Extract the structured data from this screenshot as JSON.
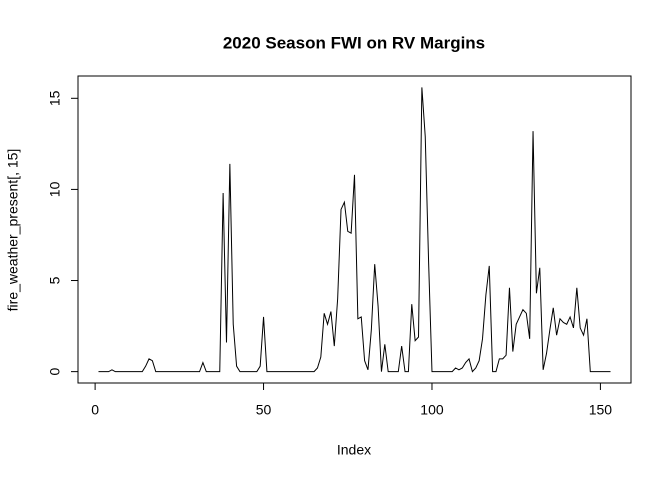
{
  "chart_data": {
    "type": "line",
    "title": "2020 Season FWI on RV Margins",
    "x_label": "Index",
    "y_label": "fire_weather_present[, 15]",
    "x": [
      1,
      2,
      3,
      4,
      5,
      6,
      7,
      8,
      9,
      10,
      11,
      12,
      13,
      14,
      15,
      16,
      17,
      18,
      19,
      20,
      21,
      22,
      23,
      24,
      25,
      26,
      27,
      28,
      29,
      30,
      31,
      32,
      33,
      34,
      35,
      36,
      37,
      38,
      39,
      40,
      41,
      42,
      43,
      44,
      45,
      46,
      47,
      48,
      49,
      50,
      51,
      52,
      53,
      54,
      55,
      56,
      57,
      58,
      59,
      60,
      61,
      62,
      63,
      64,
      65,
      66,
      67,
      68,
      69,
      70,
      71,
      72,
      73,
      74,
      75,
      76,
      77,
      78,
      79,
      80,
      81,
      82,
      83,
      84,
      85,
      86,
      87,
      88,
      89,
      90,
      91,
      92,
      93,
      94,
      95,
      96,
      97,
      98,
      99,
      100,
      101,
      102,
      103,
      104,
      105,
      106,
      107,
      108,
      109,
      110,
      111,
      112,
      113,
      114,
      115,
      116,
      117,
      118,
      119,
      120,
      121,
      122,
      123,
      124,
      125,
      126,
      127,
      128,
      129,
      130,
      131,
      132,
      133,
      134,
      135,
      136,
      137,
      138,
      139,
      140,
      141,
      142,
      143,
      144,
      145,
      146,
      147,
      148,
      149,
      150,
      151,
      152,
      153
    ],
    "series": [
      {
        "color": "#000000",
        "values": [
          0,
          0,
          0,
          0,
          0.1,
          0,
          0,
          0,
          0,
          0,
          0,
          0,
          0,
          0,
          0.3,
          0.7,
          0.6,
          0,
          0,
          0,
          0,
          0,
          0,
          0,
          0,
          0,
          0,
          0,
          0,
          0,
          0,
          0.5,
          0,
          0,
          0,
          0,
          0,
          9.8,
          1.6,
          11.4,
          2.6,
          0.3,
          0,
          0,
          0,
          0,
          0,
          0,
          0.3,
          3.0,
          0,
          0,
          0,
          0,
          0,
          0,
          0,
          0,
          0,
          0,
          0,
          0,
          0,
          0,
          0,
          0.2,
          0.8,
          3.2,
          2.6,
          3.3,
          1.4,
          4.0,
          8.9,
          9.3,
          7.7,
          7.6,
          10.8,
          2.9,
          3.0,
          0.6,
          0.1,
          2.3,
          5.9,
          3.6,
          0,
          1.5,
          0,
          0,
          0,
          0,
          1.4,
          0,
          0,
          3.7,
          1.7,
          1.9,
          15.6,
          12.9,
          6.0,
          0,
          0,
          0,
          0,
          0,
          0,
          0,
          0.2,
          0.1,
          0.2,
          0.5,
          0.7,
          0,
          0.2,
          0.6,
          1.8,
          4.2,
          5.8,
          0,
          0,
          0.7,
          0.7,
          0.9,
          4.6,
          1.1,
          2.6,
          3.0,
          3.4,
          3.2,
          1.8,
          13.2,
          4.3,
          5.7,
          0.1,
          1.0,
          2.3,
          3.5,
          2.0,
          2.9,
          2.7,
          2.6,
          3.0,
          2.4,
          4.6,
          2.4,
          2.0,
          2.9,
          0,
          0,
          0,
          0,
          0,
          0,
          0
        ]
      }
    ],
    "xlim": [
      -5.08,
      159.08
    ],
    "xticks": [
      0,
      50,
      100,
      150
    ],
    "ylim": [
      -0.624,
      16.224
    ],
    "yticks": [
      0,
      5,
      10,
      15
    ]
  }
}
